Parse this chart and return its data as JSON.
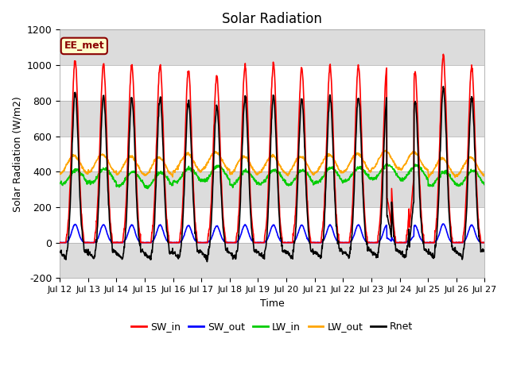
{
  "title": "Solar Radiation",
  "xlabel": "Time",
  "ylabel": "Solar Radiation (W/m2)",
  "ylim": [
    -200,
    1200
  ],
  "n_days": 15,
  "annotation_text": "EE_met",
  "x_tick_labels": [
    "Jul 12",
    "Jul 13",
    "Jul 14",
    "Jul 15",
    "Jul 16",
    "Jul 17",
    "Jul 18",
    "Jul 19",
    "Jul 20",
    "Jul 21",
    "Jul 22",
    "Jul 23",
    "Jul 24",
    "Jul 25",
    "Jul 26",
    "Jul 27"
  ],
  "series_colors": {
    "SW_in": "#ff0000",
    "SW_out": "#0000ff",
    "LW_in": "#00cc00",
    "LW_out": "#ffa500",
    "Rnet": "#000000"
  },
  "sw_peaks": [
    1030,
    1010,
    1005,
    1000,
    970,
    940,
    995,
    1000,
    990,
    995,
    990,
    980,
    960,
    1050,
    995
  ],
  "lw_in_base": 370,
  "lw_in_amplitude": 40,
  "lw_out_base": 430,
  "lw_out_amplitude": 50,
  "rnet_night": -75,
  "bg_color": "#ffffff",
  "band_color": "#dcdcdc",
  "annotation_bg": "#ffffcc",
  "annotation_border": "#8b0000",
  "annotation_text_color": "#8b0000",
  "linewidth": 1.2
}
